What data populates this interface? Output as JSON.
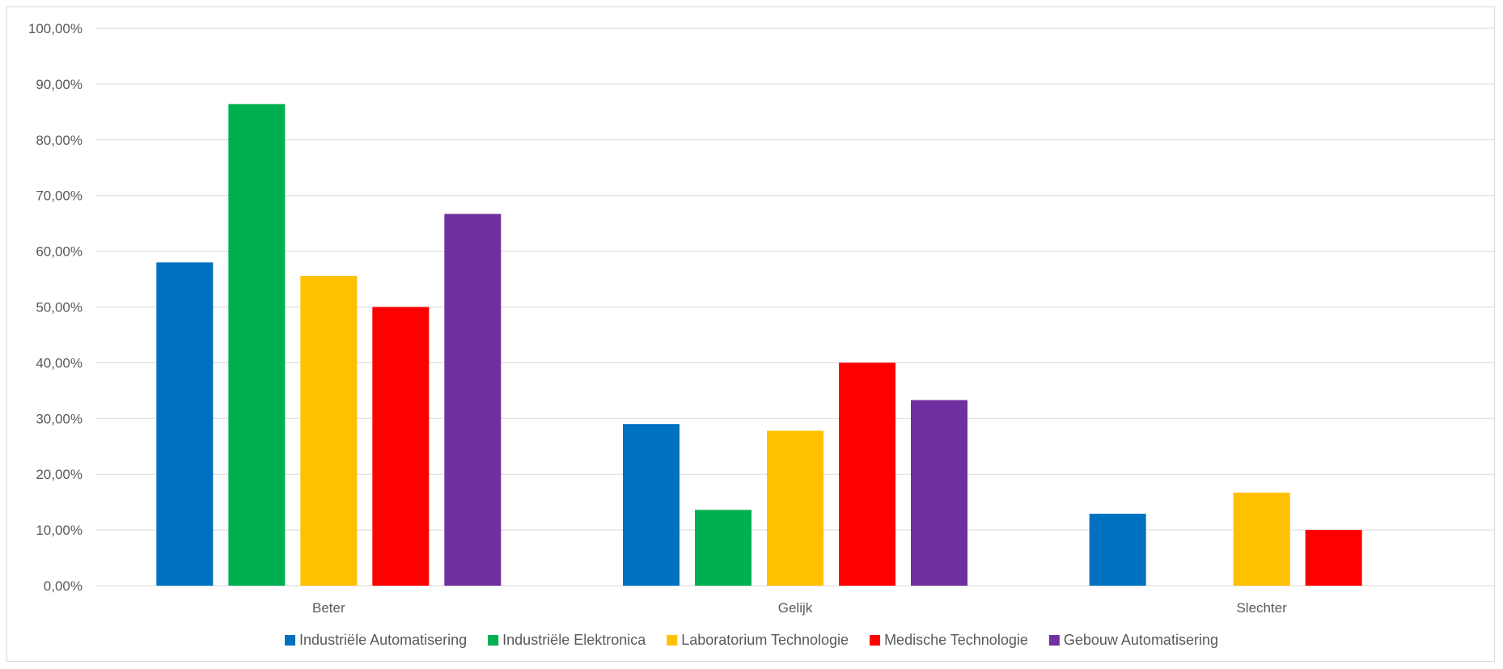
{
  "chart_data": {
    "type": "bar",
    "categories": [
      "Beter",
      "Gelijk",
      "Slechter"
    ],
    "series": [
      {
        "name": "Industriële Automatisering",
        "color": "#0070C0",
        "values": [
          58.0,
          29.0,
          12.9
        ]
      },
      {
        "name": "Industriële Elektronica",
        "color": "#00B050",
        "values": [
          86.4,
          13.6,
          0
        ]
      },
      {
        "name": "Laboratorium Technologie",
        "color": "#FFC000",
        "values": [
          55.6,
          27.8,
          16.7
        ]
      },
      {
        "name": "Medische Technologie",
        "color": "#FF0000",
        "values": [
          50.0,
          40.0,
          10.0
        ]
      },
      {
        "name": "Gebouw Automatisering",
        "color": "#7030A0",
        "values": [
          66.7,
          33.3,
          0
        ]
      }
    ],
    "yticks": [
      "0,00%",
      "10,00%",
      "20,00%",
      "30,00%",
      "40,00%",
      "50,00%",
      "60,00%",
      "70,00%",
      "80,00%",
      "90,00%",
      "100,00%"
    ],
    "ylim": [
      0,
      100
    ],
    "grid": true,
    "legend_position": "bottom",
    "title": "",
    "xlabel": "",
    "ylabel": ""
  }
}
